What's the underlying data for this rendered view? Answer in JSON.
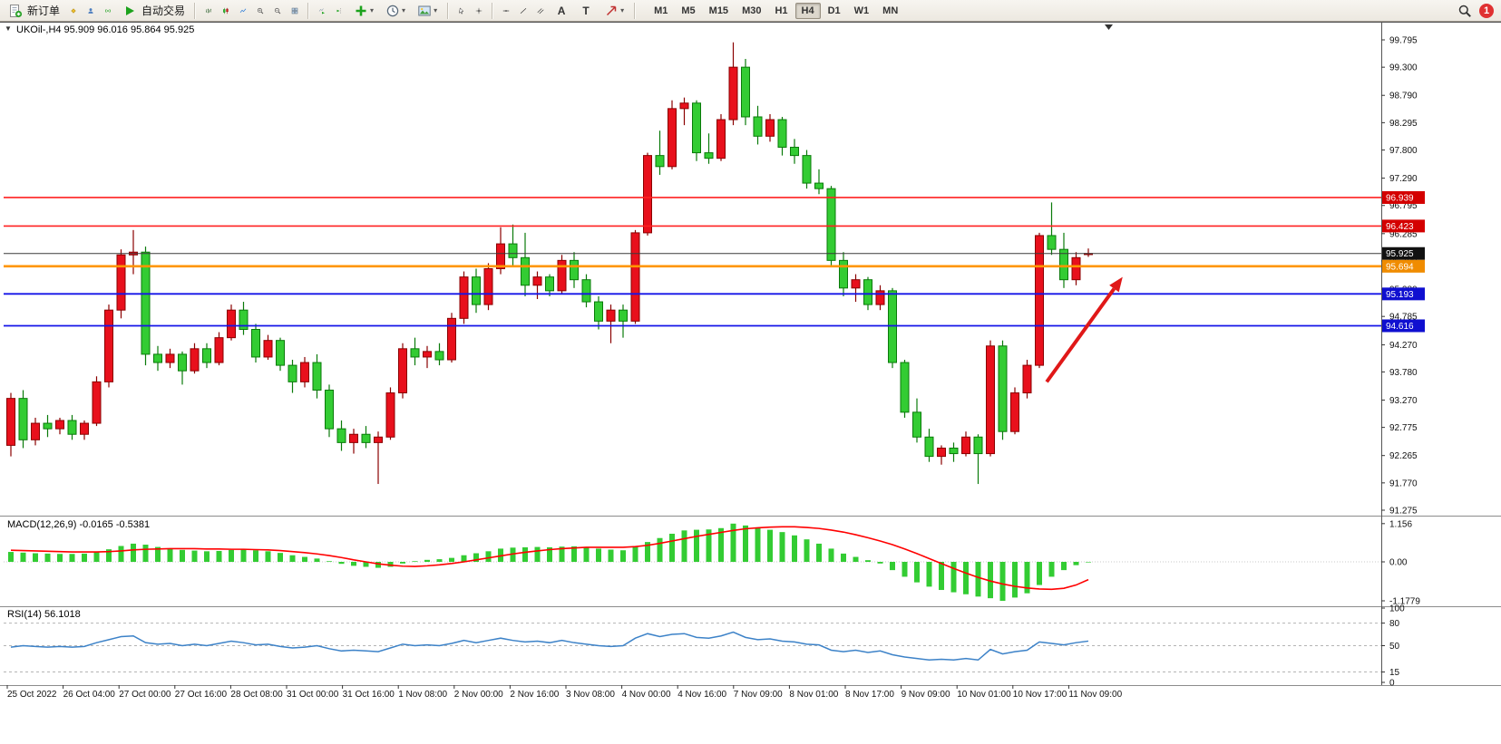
{
  "toolbar": {
    "new_order": "新订单",
    "autotrading": "自动交易",
    "timeframes": [
      "M1",
      "M5",
      "M15",
      "M30",
      "H1",
      "H4",
      "D1",
      "W1",
      "MN"
    ],
    "active_timeframe": "H4",
    "notification_badge": "1"
  },
  "icons": {
    "caret": "▾",
    "one_click_arrow": "▼",
    "text_tool": "A",
    "label_tool": "T"
  },
  "chart_data": [
    {
      "type": "candlestick",
      "title": "UKOil-,H4 95.909 96.016 95.864 95.925",
      "symbol": "UKOil-",
      "timeframe": "H4",
      "ohlc_current": {
        "open": 95.909,
        "high": 96.016,
        "low": 95.864,
        "close": 95.925
      },
      "ylim": [
        91.275,
        99.795
      ],
      "up_color": "#e8101c",
      "up_stroke": "#8a0000",
      "down_color": "#33cc33",
      "down_stroke": "#0a7a0a",
      "price_axis_ticks": [
        "99.795",
        "99.300",
        "98.790",
        "98.295",
        "97.800",
        "97.290",
        "96.795",
        "96.285",
        "95.790",
        "95.280",
        "94.785",
        "94.270",
        "93.780",
        "93.270",
        "92.775",
        "92.265",
        "91.770",
        "91.275"
      ],
      "time_axis_labels": [
        "25 Oct 2022",
        "26 Oct 04:00",
        "27 Oct 00:00",
        "27 Oct 16:00",
        "28 Oct 08:00",
        "31 Oct 00:00",
        "31 Oct 16:00",
        "1 Nov 08:00",
        "2 Nov 00:00",
        "2 Nov 16:00",
        "3 Nov 08:00",
        "4 Nov 00:00",
        "4 Nov 16:00",
        "7 Nov 09:00",
        "8 Nov 01:00",
        "8 Nov 17:00",
        "9 Nov 09:00",
        "10 Nov 01:00",
        "10 Nov 17:00",
        "11 Nov 09:00"
      ],
      "candles_ohlc": [
        [
          92.45,
          93.4,
          92.25,
          93.3
        ],
        [
          93.3,
          93.45,
          92.4,
          92.55
        ],
        [
          92.55,
          92.95,
          92.45,
          92.85
        ],
        [
          92.85,
          93.0,
          92.6,
          92.75
        ],
        [
          92.75,
          92.95,
          92.65,
          92.9
        ],
        [
          92.9,
          93.0,
          92.55,
          92.65
        ],
        [
          92.65,
          92.9,
          92.55,
          92.85
        ],
        [
          92.85,
          93.7,
          92.8,
          93.6
        ],
        [
          93.6,
          95.0,
          93.5,
          94.9
        ],
        [
          94.9,
          96.0,
          94.75,
          95.9
        ],
        [
          95.9,
          96.35,
          95.55,
          95.95
        ],
        [
          95.95,
          96.05,
          93.9,
          94.1
        ],
        [
          94.1,
          94.25,
          93.8,
          93.95
        ],
        [
          93.95,
          94.2,
          93.85,
          94.1
        ],
        [
          94.1,
          94.15,
          93.55,
          93.8
        ],
        [
          93.8,
          94.3,
          93.75,
          94.2
        ],
        [
          94.2,
          94.3,
          93.85,
          93.95
        ],
        [
          93.95,
          94.5,
          93.9,
          94.4
        ],
        [
          94.4,
          95.0,
          94.35,
          94.9
        ],
        [
          94.9,
          95.05,
          94.45,
          94.55
        ],
        [
          94.55,
          94.65,
          93.95,
          94.05
        ],
        [
          94.05,
          94.45,
          94.0,
          94.35
        ],
        [
          94.35,
          94.4,
          93.8,
          93.9
        ],
        [
          93.9,
          94.0,
          93.4,
          93.6
        ],
        [
          93.6,
          94.05,
          93.5,
          93.95
        ],
        [
          93.95,
          94.1,
          93.3,
          93.45
        ],
        [
          93.45,
          93.55,
          92.6,
          92.75
        ],
        [
          92.75,
          92.9,
          92.35,
          92.5
        ],
        [
          92.5,
          92.75,
          92.3,
          92.65
        ],
        [
          92.65,
          92.8,
          92.4,
          92.5
        ],
        [
          92.5,
          92.7,
          91.75,
          92.6
        ],
        [
          92.6,
          93.5,
          92.55,
          93.4
        ],
        [
          93.4,
          94.3,
          93.3,
          94.2
        ],
        [
          94.2,
          94.4,
          93.9,
          94.05
        ],
        [
          94.05,
          94.25,
          93.85,
          94.15
        ],
        [
          94.15,
          94.3,
          93.9,
          94.0
        ],
        [
          94.0,
          94.85,
          93.95,
          94.75
        ],
        [
          94.75,
          95.6,
          94.65,
          95.5
        ],
        [
          95.5,
          95.65,
          94.85,
          95.0
        ],
        [
          95.0,
          95.75,
          94.9,
          95.65
        ],
        [
          95.65,
          96.4,
          95.55,
          96.1
        ],
        [
          96.1,
          96.45,
          95.7,
          95.85
        ],
        [
          95.85,
          96.3,
          95.15,
          95.35
        ],
        [
          95.35,
          95.6,
          95.1,
          95.5
        ],
        [
          95.5,
          95.55,
          95.15,
          95.25
        ],
        [
          95.25,
          95.9,
          95.2,
          95.8
        ],
        [
          95.8,
          95.95,
          95.3,
          95.45
        ],
        [
          95.45,
          95.55,
          94.95,
          95.05
        ],
        [
          95.05,
          95.15,
          94.55,
          94.7
        ],
        [
          94.7,
          95.0,
          94.3,
          94.9
        ],
        [
          94.9,
          95.0,
          94.4,
          94.7
        ],
        [
          94.7,
          96.35,
          94.65,
          96.3
        ],
        [
          96.3,
          97.75,
          96.25,
          97.7
        ],
        [
          97.7,
          98.15,
          97.35,
          97.5
        ],
        [
          97.5,
          98.7,
          97.45,
          98.55
        ],
        [
          98.55,
          98.75,
          98.25,
          98.65
        ],
        [
          98.65,
          98.7,
          97.6,
          97.75
        ],
        [
          97.75,
          98.1,
          97.55,
          97.65
        ],
        [
          97.65,
          98.45,
          97.6,
          98.35
        ],
        [
          98.35,
          99.75,
          98.25,
          99.3
        ],
        [
          99.3,
          99.45,
          98.25,
          98.4
        ],
        [
          98.4,
          98.6,
          97.9,
          98.05
        ],
        [
          98.05,
          98.45,
          97.95,
          98.35
        ],
        [
          98.35,
          98.4,
          97.7,
          97.85
        ],
        [
          97.85,
          98.0,
          97.55,
          97.7
        ],
        [
          97.7,
          97.8,
          97.1,
          97.2
        ],
        [
          97.2,
          97.45,
          97.0,
          97.1
        ],
        [
          97.1,
          97.15,
          95.7,
          95.8
        ],
        [
          95.8,
          95.95,
          95.15,
          95.3
        ],
        [
          95.3,
          95.55,
          95.05,
          95.45
        ],
        [
          95.45,
          95.5,
          94.9,
          95.0
        ],
        [
          95.0,
          95.35,
          94.9,
          95.25
        ],
        [
          95.25,
          95.3,
          93.85,
          93.95
        ],
        [
          93.95,
          94.0,
          92.95,
          93.05
        ],
        [
          93.05,
          93.3,
          92.5,
          92.6
        ],
        [
          92.6,
          92.75,
          92.15,
          92.25
        ],
        [
          92.25,
          92.45,
          92.1,
          92.4
        ],
        [
          92.4,
          92.5,
          92.15,
          92.3
        ],
        [
          92.3,
          92.7,
          92.25,
          92.6
        ],
        [
          92.6,
          92.65,
          91.75,
          92.3
        ],
        [
          92.3,
          94.35,
          92.25,
          94.25
        ],
        [
          94.25,
          94.35,
          92.55,
          92.7
        ],
        [
          92.7,
          93.5,
          92.65,
          93.4
        ],
        [
          93.4,
          94.0,
          93.3,
          93.9
        ],
        [
          93.9,
          96.3,
          93.85,
          96.25
        ],
        [
          96.25,
          96.85,
          95.9,
          96.0
        ],
        [
          96.0,
          96.3,
          95.3,
          95.45
        ],
        [
          95.45,
          95.95,
          95.35,
          95.85
        ],
        [
          95.909,
          96.016,
          95.864,
          95.925
        ]
      ],
      "levels": [
        {
          "price": 96.939,
          "label": "96.939",
          "color": "#ff2020",
          "label_bg": "#d40000",
          "width": 1.6
        },
        {
          "price": 96.423,
          "label": "96.423",
          "color": "#ff2020",
          "label_bg": "#d40000",
          "width": 1.6
        },
        {
          "price": 95.925,
          "label": "95.925",
          "color": "#3a3a3a",
          "label_bg": "#111111",
          "width": 1
        },
        {
          "price": 95.694,
          "label": "95.694",
          "color": "#ff9500",
          "label_bg": "#f08c00",
          "width": 2.6
        },
        {
          "price": 95.193,
          "label": "95.193",
          "color": "#1414e8",
          "label_bg": "#0f0fd0",
          "width": 1.8
        },
        {
          "price": 94.616,
          "label": "94.616",
          "color": "#1414e8",
          "label_bg": "#0f0fd0",
          "width": 1.8
        }
      ],
      "arrow": {
        "from_index": 84.6,
        "from_price": 93.6,
        "to_index": 90.8,
        "to_price": 95.5,
        "color": "#e01818"
      }
    },
    {
      "type": "macd",
      "label": "MACD(12,26,9) -0.0165 -0.5381",
      "params": "12,26,9",
      "value": -0.0165,
      "signal_value": -0.5381,
      "ylim": [
        -1.1779,
        1.156
      ],
      "axis_ticks": [
        "1.156",
        "0.00",
        "-1.1779"
      ],
      "histogram_color": "#33cc33",
      "signal_color": "#ff0000",
      "histogram": [
        0.3,
        0.28,
        0.26,
        0.25,
        0.24,
        0.24,
        0.25,
        0.3,
        0.38,
        0.48,
        0.55,
        0.52,
        0.45,
        0.4,
        0.36,
        0.34,
        0.32,
        0.33,
        0.36,
        0.38,
        0.35,
        0.32,
        0.27,
        0.2,
        0.15,
        0.1,
        0.02,
        -0.06,
        -0.12,
        -0.15,
        -0.18,
        -0.15,
        -0.05,
        0.02,
        0.06,
        0.08,
        0.12,
        0.2,
        0.26,
        0.32,
        0.4,
        0.43,
        0.44,
        0.45,
        0.44,
        0.46,
        0.47,
        0.45,
        0.4,
        0.37,
        0.35,
        0.45,
        0.6,
        0.72,
        0.85,
        0.95,
        0.97,
        0.98,
        1.02,
        1.156,
        1.1,
        1.02,
        0.97,
        0.9,
        0.8,
        0.68,
        0.55,
        0.4,
        0.25,
        0.15,
        0.05,
        -0.05,
        -0.25,
        -0.45,
        -0.62,
        -0.75,
        -0.85,
        -0.92,
        -0.98,
        -1.05,
        -1.1,
        -1.1779,
        -1.08,
        -0.95,
        -0.7,
        -0.45,
        -0.25,
        -0.1,
        -0.0165
      ],
      "signal": [
        0.35,
        0.34,
        0.33,
        0.32,
        0.31,
        0.3,
        0.3,
        0.3,
        0.31,
        0.33,
        0.36,
        0.38,
        0.39,
        0.4,
        0.4,
        0.4,
        0.39,
        0.39,
        0.38,
        0.38,
        0.37,
        0.36,
        0.34,
        0.31,
        0.28,
        0.24,
        0.19,
        0.13,
        0.06,
        0.0,
        -0.06,
        -0.1,
        -0.13,
        -0.14,
        -0.12,
        -0.09,
        -0.05,
        0.0,
        0.06,
        0.12,
        0.18,
        0.24,
        0.29,
        0.33,
        0.37,
        0.4,
        0.42,
        0.44,
        0.44,
        0.44,
        0.44,
        0.46,
        0.5,
        0.56,
        0.63,
        0.7,
        0.77,
        0.83,
        0.89,
        0.95,
        1.0,
        1.03,
        1.05,
        1.06,
        1.06,
        1.04,
        1.01,
        0.96,
        0.9,
        0.82,
        0.73,
        0.63,
        0.52,
        0.39,
        0.25,
        0.1,
        -0.05,
        -0.2,
        -0.34,
        -0.47,
        -0.58,
        -0.67,
        -0.74,
        -0.79,
        -0.82,
        -0.83,
        -0.8,
        -0.7,
        -0.5381
      ]
    },
    {
      "type": "rsi",
      "label": "RSI(14) 56.1018",
      "period": "14",
      "value": 56.1018,
      "ylim": [
        0,
        100
      ],
      "levels": [
        80,
        50,
        15
      ],
      "axis_ticks": [
        "100",
        "80",
        "50",
        "15",
        "0"
      ],
      "line_color": "#3c82c8",
      "values": [
        48,
        50,
        49,
        48,
        49,
        48,
        49,
        54,
        58,
        62,
        63,
        54,
        52,
        53,
        50,
        52,
        50,
        53,
        56,
        54,
        51,
        52,
        49,
        47,
        48,
        50,
        46,
        43,
        44,
        43,
        42,
        47,
        52,
        50,
        51,
        50,
        53,
        57,
        54,
        57,
        60,
        57,
        55,
        56,
        54,
        57,
        54,
        52,
        50,
        49,
        50,
        60,
        66,
        62,
        65,
        66,
        61,
        60,
        63,
        68,
        61,
        58,
        59,
        56,
        55,
        52,
        51,
        44,
        42,
        44,
        41,
        43,
        38,
        35,
        33,
        31,
        32,
        31,
        33,
        31,
        45,
        39,
        42,
        44,
        55,
        53,
        51,
        54,
        56.1
      ]
    }
  ]
}
